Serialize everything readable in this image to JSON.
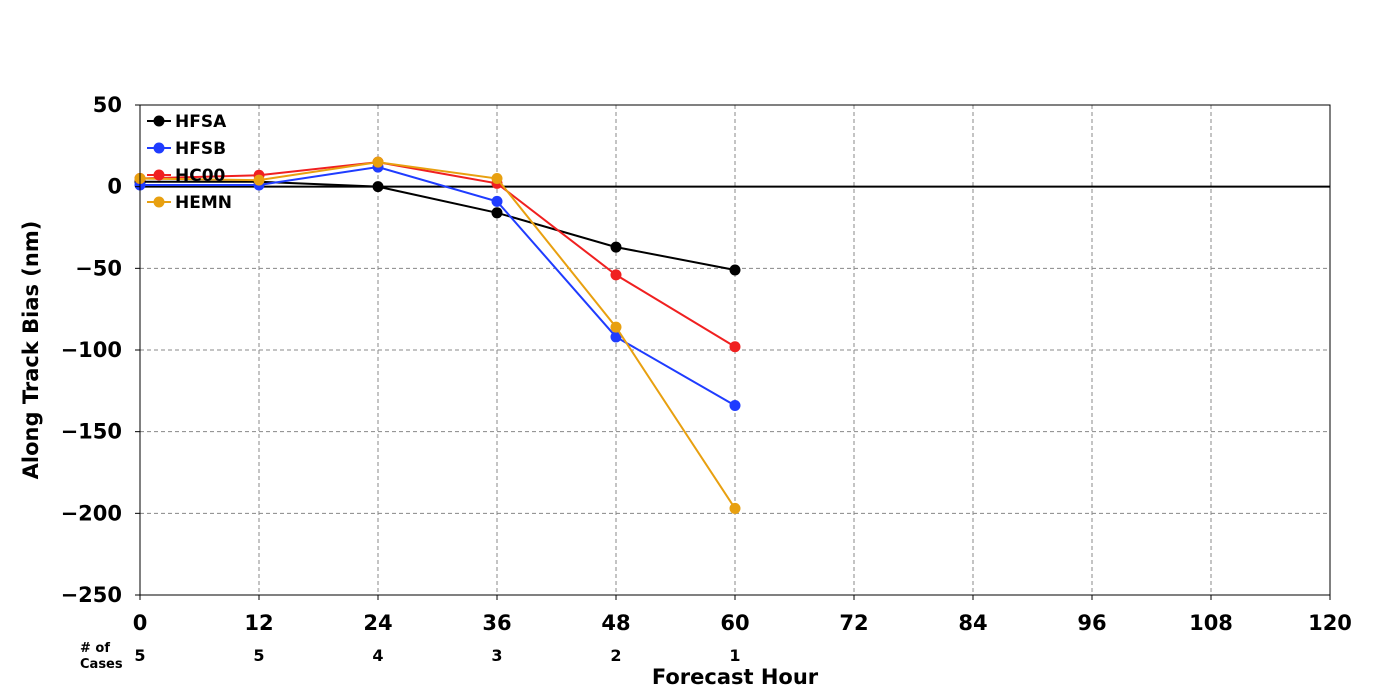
{
  "chart_data": {
    "type": "line",
    "title": "",
    "xlabel": "Forecast Hour",
    "ylabel": "Along Track Bias (nm)",
    "xlim": [
      0,
      120
    ],
    "ylim": [
      -250,
      50
    ],
    "x_ticks": [
      0,
      12,
      24,
      36,
      48,
      60,
      72,
      84,
      96,
      108,
      120
    ],
    "x_tick_labels": [
      "0",
      "12",
      "24",
      "36",
      "48",
      "60",
      "72",
      "84",
      "96",
      "108",
      "120"
    ],
    "y_ticks": [
      50,
      0,
      -50,
      -100,
      -150,
      -200,
      -250
    ],
    "y_tick_labels": [
      "50",
      "0",
      "−50",
      "−100",
      "−150",
      "−200",
      "−250"
    ],
    "grid": true,
    "reference_line": 0,
    "legend_position": "top-left",
    "cases_label": "# of\nCases",
    "cases": [
      {
        "x": 0,
        "count": "5"
      },
      {
        "x": 12,
        "count": "5"
      },
      {
        "x": 24,
        "count": "4"
      },
      {
        "x": 36,
        "count": "3"
      },
      {
        "x": 48,
        "count": "2"
      },
      {
        "x": 60,
        "count": "1"
      }
    ],
    "x": [
      0,
      12,
      24,
      36,
      48,
      60
    ],
    "series": [
      {
        "name": "HFSA",
        "color": "#000000",
        "values": [
          3,
          3,
          0,
          -16,
          -37,
          -51
        ]
      },
      {
        "name": "HFSB",
        "color": "#1f3cff",
        "values": [
          1,
          1,
          12,
          -9,
          -92,
          -134
        ]
      },
      {
        "name": "HC00",
        "color": "#f02020",
        "values": [
          5,
          7,
          15,
          2,
          -54,
          -98
        ]
      },
      {
        "name": "HEMN",
        "color": "#e8a010",
        "values": [
          5,
          4,
          15,
          5,
          -86,
          -197
        ]
      }
    ]
  }
}
